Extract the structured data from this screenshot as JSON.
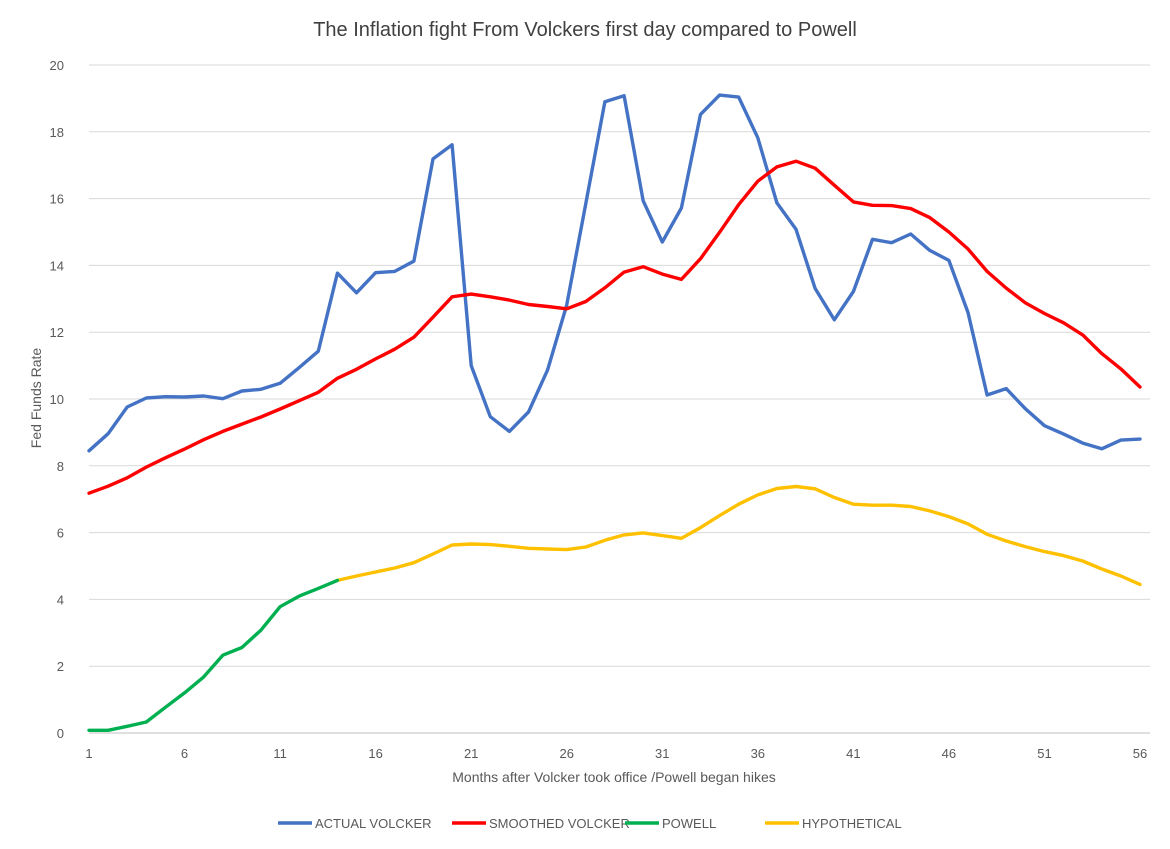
{
  "chart_data": {
    "type": "line",
    "title": "The Inflation fight From Volckers first day compared to Powell",
    "xlabel": "Months after Volcker took office /Powell began hikes",
    "ylabel": "Fed Funds Rate",
    "xlim": [
      1,
      56
    ],
    "ylim": [
      0,
      20
    ],
    "x_ticks": [
      1,
      6,
      11,
      16,
      21,
      26,
      31,
      36,
      41,
      46,
      51,
      56
    ],
    "y_ticks": [
      0,
      2,
      4,
      6,
      8,
      10,
      12,
      14,
      16,
      18,
      20
    ],
    "grid": "horizontal",
    "legend_position": "bottom",
    "series": [
      {
        "name": "ACTUAL VOLCKER",
        "color": "#4472C4",
        "x_start": 1,
        "values": [
          8.45,
          8.96,
          9.76,
          10.03,
          10.07,
          10.06,
          10.09,
          10.01,
          10.24,
          10.29,
          10.47,
          10.94,
          11.43,
          13.77,
          13.18,
          13.78,
          13.82,
          14.13,
          17.19,
          17.61,
          11.0,
          9.47,
          9.03,
          9.61,
          10.87,
          12.81,
          15.85,
          18.9,
          19.08,
          15.93,
          14.7,
          15.72,
          18.52,
          19.1,
          19.04,
          17.82,
          15.87,
          15.08,
          13.31,
          12.37,
          13.22,
          14.78,
          14.68,
          14.94,
          14.45,
          14.15,
          12.59,
          10.12,
          10.31,
          9.71,
          9.2,
          8.95,
          8.68,
          8.51,
          8.77,
          8.8
        ]
      },
      {
        "name": "SMOOTHED VOLCKER",
        "color": "#FF0000",
        "x_start": 1,
        "values": [
          7.18,
          7.39,
          7.64,
          7.96,
          8.24,
          8.5,
          8.78,
          9.03,
          9.25,
          9.46,
          9.7,
          9.95,
          10.2,
          10.62,
          10.89,
          11.2,
          11.49,
          11.85,
          12.45,
          13.06,
          13.14,
          13.06,
          12.96,
          12.83,
          12.77,
          12.7,
          12.92,
          13.33,
          13.8,
          13.96,
          13.74,
          13.58,
          14.2,
          14.99,
          15.82,
          16.52,
          16.95,
          17.12,
          16.91,
          16.4,
          15.9,
          15.8,
          15.79,
          15.7,
          15.43,
          15.0,
          14.49,
          13.82,
          13.32,
          12.88,
          12.56,
          12.28,
          11.92,
          11.36,
          10.9,
          10.36
        ]
      },
      {
        "name": "POWELL",
        "color": "#00B050",
        "x_start": 1,
        "values": [
          0.08,
          0.08,
          0.2,
          0.33,
          0.77,
          1.2,
          1.68,
          2.33,
          2.56,
          3.08,
          3.78,
          4.1,
          4.33,
          4.57
        ]
      },
      {
        "name": "HYPOTHETICAL",
        "color": "#FFC000",
        "x_start": 14,
        "values": [
          4.57,
          4.7,
          4.82,
          4.94,
          5.1,
          5.36,
          5.63,
          5.66,
          5.64,
          5.59,
          5.53,
          5.51,
          5.49,
          5.57,
          5.77,
          5.93,
          5.99,
          5.91,
          5.83,
          6.15,
          6.51,
          6.85,
          7.13,
          7.32,
          7.38,
          7.31,
          7.05,
          6.85,
          6.82,
          6.82,
          6.78,
          6.65,
          6.48,
          6.26,
          5.95,
          5.75,
          5.58,
          5.43,
          5.31,
          5.15,
          4.91,
          4.7,
          4.45
        ]
      }
    ]
  }
}
